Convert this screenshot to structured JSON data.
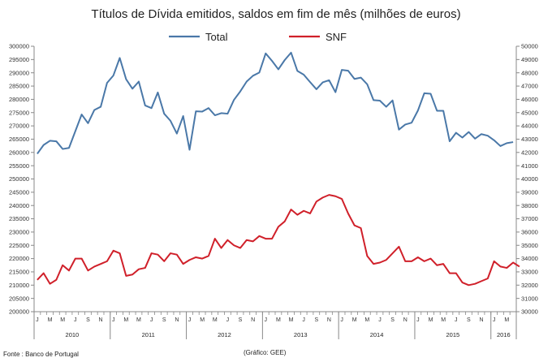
{
  "chart_data": {
    "type": "line",
    "title": "Títulos de Dívida emitidos, saldos em fim de mês  (milhões de euros)",
    "source": "Fonte : Banco de Portugal",
    "credit": "(Gráfico: GEE)",
    "legend_position": "top-center",
    "colors": {
      "Total": "#4a78a8",
      "SNF": "#d0202a",
      "axis": "#888888"
    },
    "y_left": {
      "min": 200000,
      "max": 300000,
      "step": 5000,
      "series": "Total"
    },
    "y_right": {
      "min": 30000,
      "max": 50000,
      "step": 1000,
      "series": "SNF"
    },
    "month_letters": [
      "J",
      "M",
      "M",
      "J",
      "S",
      "N"
    ],
    "years": [
      "2010",
      "2011",
      "2012",
      "2013",
      "2014",
      "2015",
      "2016"
    ],
    "start": "2010-01",
    "series": [
      {
        "name": "Total",
        "axis": "left",
        "values": [
          259500,
          262800,
          264400,
          264200,
          261300,
          261700,
          268000,
          274300,
          271000,
          276000,
          277200,
          286200,
          289000,
          295600,
          287600,
          284000,
          286700,
          277700,
          276700,
          282600,
          274600,
          271900,
          267100,
          273700,
          261000,
          275500,
          275400,
          276700,
          274000,
          274800,
          274600,
          279800,
          283000,
          286700,
          288900,
          290100,
          297300,
          294500,
          291300,
          294800,
          297600,
          290700,
          289300,
          286500,
          283800,
          286400,
          287200,
          282700,
          291100,
          290800,
          287700,
          288200,
          285700,
          279700,
          279500,
          277200,
          279600,
          268600,
          270500,
          271200,
          275800,
          282300,
          282100,
          275700,
          275700,
          264200,
          267400,
          265600,
          267700,
          265200,
          266900,
          266300,
          264600,
          262400,
          263500,
          263900
        ]
      },
      {
        "name": "SNF",
        "axis": "right",
        "values": [
          32400,
          32900,
          32100,
          32400,
          33500,
          33100,
          34000,
          34000,
          33100,
          33400,
          33600,
          33800,
          34600,
          34400,
          32700,
          32800,
          33200,
          33300,
          34400,
          34300,
          33800,
          34400,
          34300,
          33600,
          33900,
          34100,
          34000,
          34200,
          35500,
          34800,
          35400,
          35000,
          34800,
          35400,
          35300,
          35700,
          35500,
          35500,
          36400,
          36800,
          37700,
          37300,
          37600,
          37400,
          38300,
          38600,
          38800,
          38700,
          38500,
          37400,
          36500,
          36300,
          34200,
          33600,
          33700,
          33900,
          34400,
          34900,
          33800,
          33800,
          34100,
          33800,
          34000,
          33500,
          33600,
          32900,
          32900,
          32200,
          32000,
          32100,
          32300,
          32500,
          33800,
          33400,
          33300,
          33700,
          33400
        ]
      }
    ]
  }
}
